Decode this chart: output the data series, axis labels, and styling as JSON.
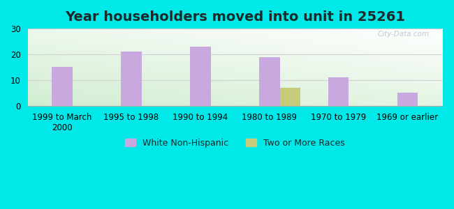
{
  "title": "Year householders moved into unit in 25261",
  "categories": [
    "1999 to March\n2000",
    "1995 to 1998",
    "1990 to 1994",
    "1980 to 1989",
    "1970 to 1979",
    "1969 or earlier"
  ],
  "white_non_hispanic": [
    15,
    21,
    23,
    19,
    11,
    5
  ],
  "two_or_more_races": [
    0,
    0,
    0,
    7,
    0,
    0
  ],
  "bar_color_white": "#c9a8e0",
  "bar_color_two": "#c8cc7a",
  "ylim": [
    0,
    30
  ],
  "yticks": [
    0,
    10,
    20,
    30
  ],
  "outer_bg": "#00e8e8",
  "plot_bg_top_right": "#f0faf8",
  "plot_bg_bottom_left": "#d4edda",
  "grid_color": "#d0d0d0",
  "watermark": "City-Data.com",
  "legend_entries": [
    "White Non-Hispanic",
    "Two or More Races"
  ],
  "title_fontsize": 14,
  "title_color": "#1a2a2a",
  "tick_fontsize": 8.5
}
